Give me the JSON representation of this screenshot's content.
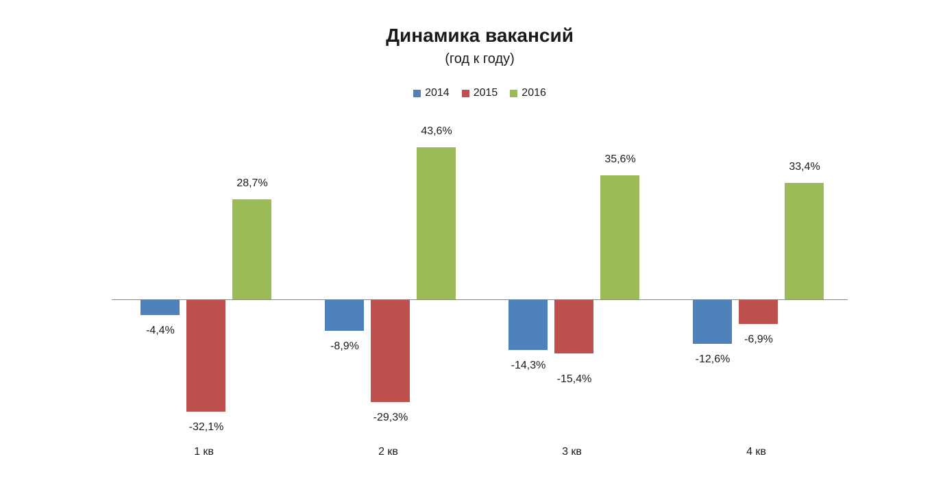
{
  "chart_data": {
    "type": "bar",
    "title": "Динамика вакансий",
    "subtitle": "(год к году)",
    "categories": [
      "1 кв",
      "2 кв",
      "3 кв",
      "4 кв"
    ],
    "series": [
      {
        "name": "2014",
        "color": "#4F81BD",
        "values": [
          -4.4,
          -8.9,
          -14.3,
          -12.6
        ],
        "labels": [
          "-4,4%",
          "-8,9%",
          "-14,3%",
          "-12,6%"
        ]
      },
      {
        "name": "2015",
        "color": "#C0504D",
        "values": [
          -32.1,
          -29.3,
          -15.4,
          -6.9
        ],
        "labels": [
          "-32,1%",
          "-29,3%",
          "-15,4%",
          "-6,9%"
        ]
      },
      {
        "name": "2016",
        "color": "#9BBB59",
        "values": [
          28.7,
          43.6,
          35.6,
          33.4
        ],
        "labels": [
          "28,7%",
          "43,6%",
          "35,6%",
          "33,4%"
        ]
      }
    ],
    "xlabel": "",
    "ylabel": "",
    "ylim": [
      -40,
      50
    ],
    "grid": false,
    "legend_position": "top",
    "axis_color": "#878787",
    "value_suffix": "%",
    "decimal_separator": ","
  }
}
